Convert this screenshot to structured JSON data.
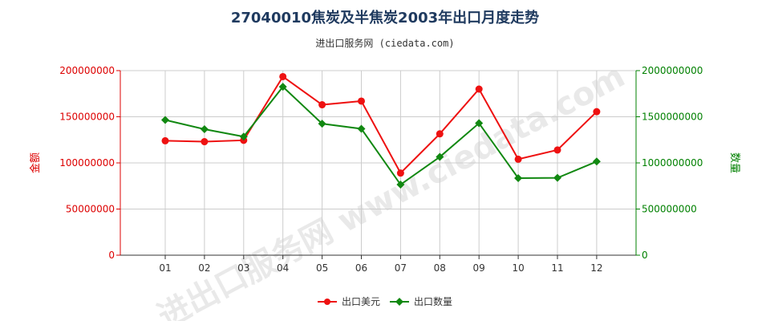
{
  "title": "27040010焦炭及半焦炭2003年出口月度走势",
  "subtitle": "进出口服务网 (ciedata.com)",
  "watermark": "进出口服务网 www.ciedata.com",
  "colors": {
    "left_axis": "#dd0000",
    "right_axis": "#008000",
    "grid": "#cccccc",
    "title": "#1f3a5f"
  },
  "chart_data": {
    "type": "line",
    "title": "27040010焦炭及半焦炭2003年出口月度走势",
    "categories": [
      "01",
      "02",
      "03",
      "04",
      "05",
      "06",
      "07",
      "08",
      "09",
      "10",
      "11",
      "12"
    ],
    "y_left": {
      "label": "金额",
      "ylim": [
        0,
        200000000
      ],
      "ticks": [
        "0",
        "50000000",
        "100000000",
        "150000000",
        "200000000"
      ]
    },
    "y_right": {
      "label": "数量",
      "ylim": [
        0,
        2000000000
      ],
      "ticks": [
        "0",
        "500000000",
        "1000000000",
        "1500000000",
        "2000000000"
      ]
    },
    "grid": true,
    "legend_position": "bottom",
    "series": [
      {
        "name": "出口美元",
        "axis": "left",
        "color": "#ee1111",
        "marker": "circle",
        "values": [
          124000000,
          123000000,
          124500000,
          193500000,
          163000000,
          167000000,
          89000000,
          131500000,
          180000000,
          104000000,
          114000000,
          155500000
        ]
      },
      {
        "name": "出口数量",
        "axis": "right",
        "color": "#118811",
        "marker": "diamond",
        "values": [
          1465000000,
          1365000000,
          1285000000,
          1825000000,
          1425000000,
          1370000000,
          765000000,
          1065000000,
          1430000000,
          835000000,
          838000000,
          1015000000
        ]
      }
    ]
  }
}
